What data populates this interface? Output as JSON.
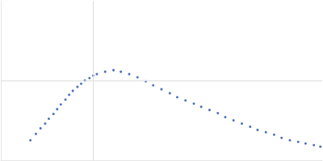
{
  "chart_data": {
    "type": "scatter",
    "color": "#3a62b0",
    "grid": true,
    "tick_labels": false,
    "xlim": [
      0,
      3.48
    ],
    "xticks": [
      1
    ],
    "ylim": [
      0,
      2
    ],
    "yticks": [
      1
    ],
    "x": [
      0.32,
      0.38,
      0.43,
      0.48,
      0.52,
      0.57,
      0.61,
      0.65,
      0.7,
      0.74,
      0.78,
      0.83,
      0.87,
      0.91,
      0.96,
      1.0,
      1.04,
      1.13,
      1.22,
      1.3,
      1.39,
      1.48,
      1.57,
      1.65,
      1.74,
      1.83,
      1.91,
      2.0,
      2.09,
      2.17,
      2.26,
      2.35,
      2.43,
      2.52,
      2.61,
      2.7,
      2.78,
      2.87,
      2.96,
      3.04,
      3.13,
      3.22,
      3.3,
      3.39,
      3.46
    ],
    "values": [
      0.25,
      0.33,
      0.4,
      0.46,
      0.52,
      0.58,
      0.64,
      0.7,
      0.76,
      0.82,
      0.87,
      0.92,
      0.96,
      1.0,
      1.03,
      1.06,
      1.08,
      1.11,
      1.13,
      1.11,
      1.08,
      1.04,
      0.99,
      0.94,
      0.89,
      0.84,
      0.79,
      0.75,
      0.71,
      0.67,
      0.63,
      0.59,
      0.54,
      0.5,
      0.46,
      0.42,
      0.38,
      0.35,
      0.32,
      0.28,
      0.25,
      0.23,
      0.21,
      0.19,
      0.17
    ]
  }
}
